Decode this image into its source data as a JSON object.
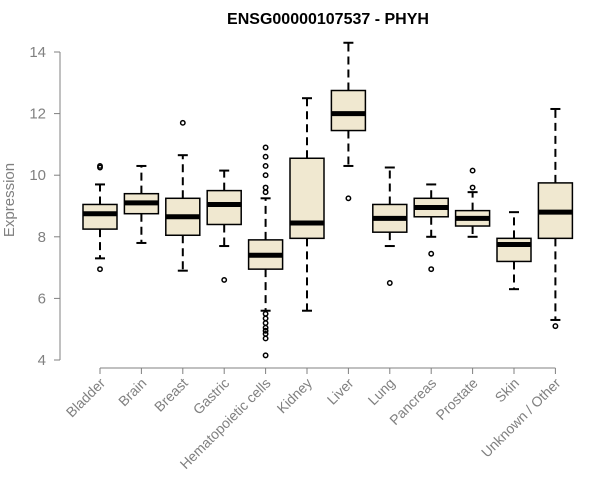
{
  "chart_data": {
    "type": "boxplot",
    "title": "ENSG00000107537 - PHYH",
    "xlabel": "",
    "ylabel": "Expression",
    "ylim": [
      4,
      14
    ],
    "yticks": [
      "4",
      "6",
      "8",
      "10",
      "12",
      "14"
    ],
    "colors": {
      "box_fill": "#f0e8d0",
      "stroke": "#000000",
      "axis": "#808080",
      "text": "#808080"
    },
    "categories": [
      "Bladder",
      "Brain",
      "Breast",
      "Gastric",
      "Hematopoietic cells",
      "Kidney",
      "Liver",
      "Lung",
      "Pancreas",
      "Prostate",
      "Skin",
      "Unknown / Other"
    ],
    "series": [
      {
        "name": "Bladder",
        "q1": 8.25,
        "median": 8.75,
        "q3": 9.05,
        "whisker_low": 7.3,
        "whisker_high": 9.7,
        "outliers": [
          6.95,
          10.25,
          10.3
        ]
      },
      {
        "name": "Brain",
        "q1": 8.75,
        "median": 9.1,
        "q3": 9.4,
        "whisker_low": 7.8,
        "whisker_high": 10.3,
        "outliers": []
      },
      {
        "name": "Breast",
        "q1": 8.05,
        "median": 8.65,
        "q3": 9.25,
        "whisker_low": 6.9,
        "whisker_high": 10.65,
        "outliers": [
          11.7
        ]
      },
      {
        "name": "Gastric",
        "q1": 8.4,
        "median": 9.05,
        "q3": 9.5,
        "whisker_low": 7.7,
        "whisker_high": 10.15,
        "outliers": [
          6.6
        ]
      },
      {
        "name": "Hematopoietic cells",
        "q1": 6.95,
        "median": 7.4,
        "q3": 7.9,
        "whisker_low": 5.6,
        "whisker_high": 9.25,
        "outliers": [
          4.15,
          4.7,
          4.85,
          4.95,
          5.05,
          5.2,
          5.35,
          5.5,
          9.45,
          9.6,
          10.0,
          10.3,
          10.6,
          10.9
        ]
      },
      {
        "name": "Kidney",
        "q1": 7.95,
        "median": 8.45,
        "q3": 10.55,
        "whisker_low": 5.6,
        "whisker_high": 12.5,
        "outliers": []
      },
      {
        "name": "Liver",
        "q1": 11.45,
        "median": 12.0,
        "q3": 12.75,
        "whisker_low": 10.3,
        "whisker_high": 14.3,
        "outliers": [
          9.25
        ]
      },
      {
        "name": "Lung",
        "q1": 8.15,
        "median": 8.6,
        "q3": 9.05,
        "whisker_low": 7.7,
        "whisker_high": 10.25,
        "outliers": [
          6.5
        ]
      },
      {
        "name": "Pancreas",
        "q1": 8.65,
        "median": 8.95,
        "q3": 9.25,
        "whisker_low": 8.0,
        "whisker_high": 9.7,
        "outliers": [
          7.45,
          6.95
        ]
      },
      {
        "name": "Prostate",
        "q1": 8.35,
        "median": 8.6,
        "q3": 8.85,
        "whisker_low": 8.0,
        "whisker_high": 9.45,
        "outliers": [
          9.6,
          10.15
        ]
      },
      {
        "name": "Skin",
        "q1": 7.2,
        "median": 7.75,
        "q3": 7.95,
        "whisker_low": 6.3,
        "whisker_high": 8.8,
        "outliers": []
      },
      {
        "name": "Unknown / Other",
        "q1": 7.95,
        "median": 8.8,
        "q3": 9.75,
        "whisker_low": 5.3,
        "whisker_high": 12.15,
        "outliers": [
          5.1
        ]
      }
    ]
  }
}
